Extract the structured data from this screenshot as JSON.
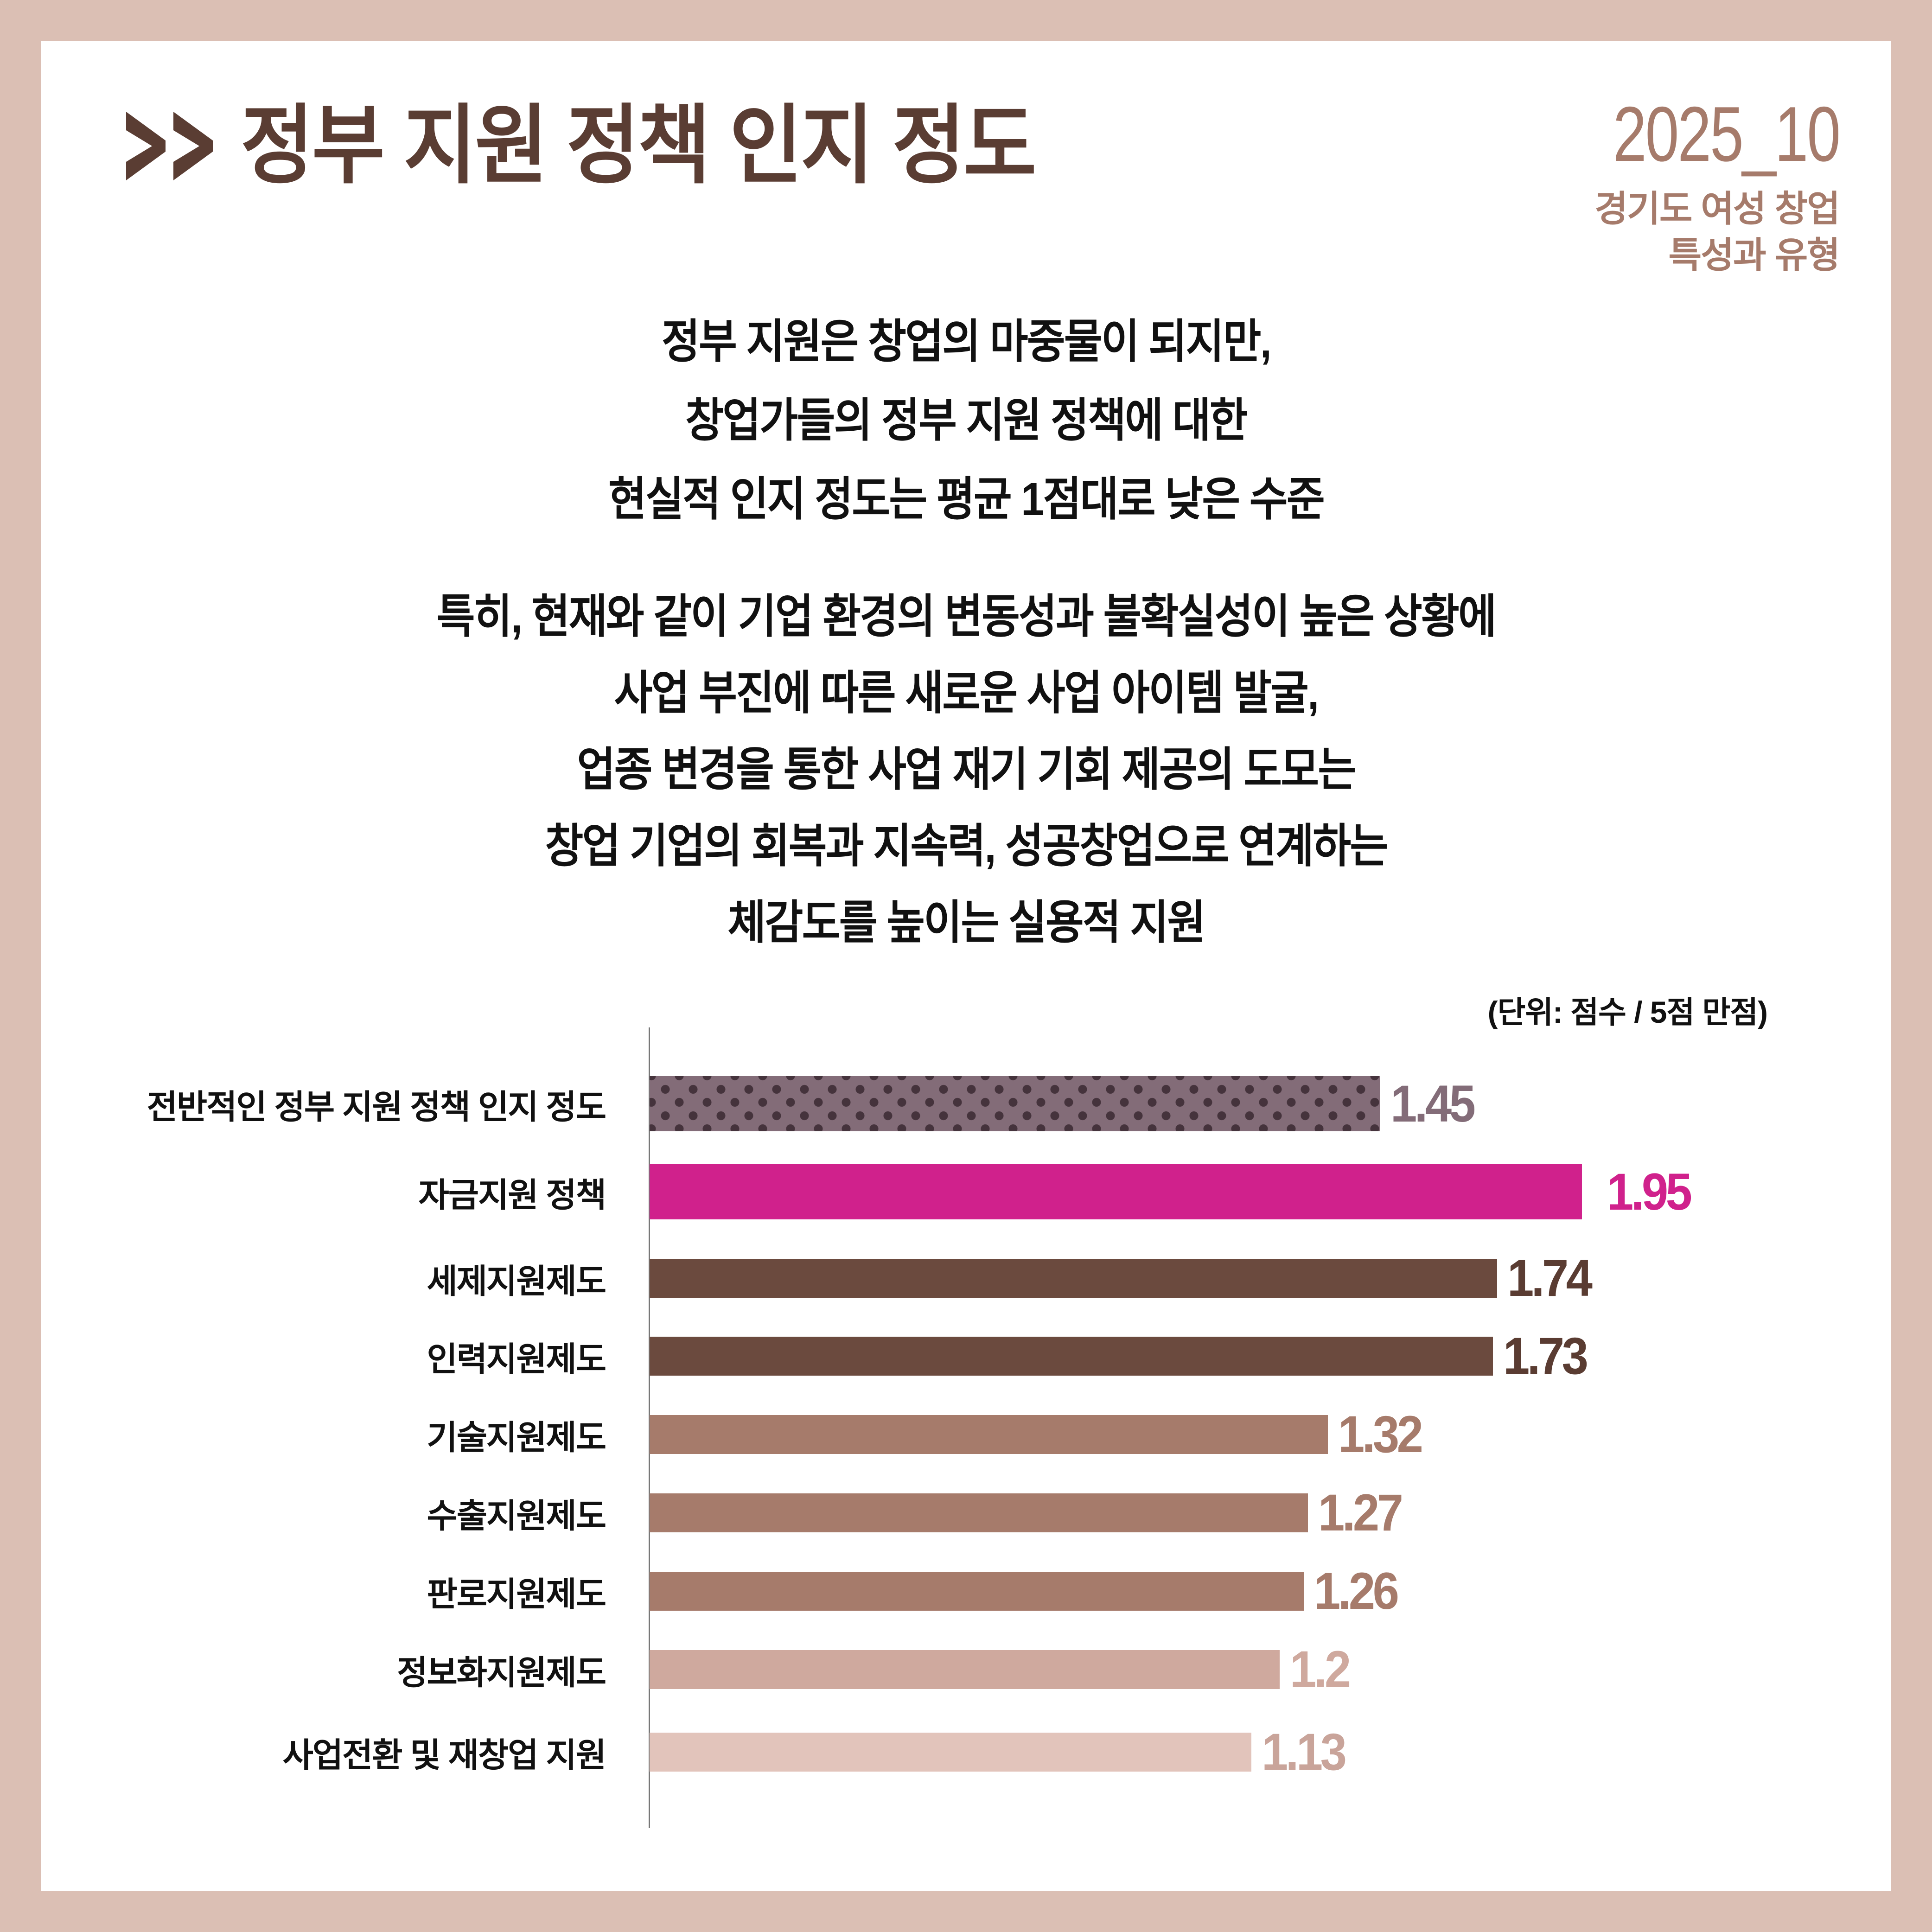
{
  "header": {
    "title_prefix_icon": "double-chevron-right-icon",
    "title": "정부 지원 정책 인지 정도",
    "issue_date": "2025_10",
    "series_title_lines": [
      "경기도 여성 창업",
      "특성과 유형"
    ]
  },
  "summary": {
    "paragraph1": [
      "정부 지원은 창업의 마중물이 되지만,",
      "창업가들의 정부 지원 정책에 대한",
      "현실적 인지 정도는 평균 1점대로 낮은 수준"
    ],
    "paragraph2": [
      "특히, 현재와 같이 기업 환경의 변동성과 불확실성이 높은 상황에",
      "사업 부진에 따른 새로운 사업 아이템 발굴,",
      "업종 변경을 통한 사업 재기 기회 제공의 도모는",
      "창업 기업의 회복과 지속력, 성공창업으로 연계하는",
      "체감도를 높이는 실용적 지원"
    ]
  },
  "colors": {
    "border": "#dbbfb4",
    "title": "#5a3d33",
    "accent_light_brown": "#a67b6b",
    "overall_bar": "#836c78",
    "overall_dots": "#45333c",
    "highlight_magenta": "#d0218c",
    "dark_brown": "#6b4a3e",
    "mid_brown": "#a67b6b",
    "light_pink": "#cfa99e",
    "lightest_pink": "#e2c4bb"
  },
  "chart_data": {
    "type": "bar",
    "orientation": "horizontal",
    "title": "정부 지원 정책 인지 정도",
    "unit_note": "(단위: 점수 / 5점 만점)",
    "xlabel": "",
    "ylabel": "",
    "xlim": [
      0,
      5
    ],
    "grid": false,
    "legend": null,
    "categories": [
      "전반적인 정부 지원 정책 인지 정도",
      "자금지원 정책",
      "세제지원제도",
      "인력지원제도",
      "기술지원제도",
      "수출지원제도",
      "판로지원제도",
      "정보화지원제도",
      "사업전환 및 재창업 지원"
    ],
    "values": [
      1.45,
      1.95,
      1.74,
      1.73,
      1.32,
      1.27,
      1.26,
      1.2,
      1.13
    ],
    "value_labels": [
      "1.45",
      "1.95",
      "1.74",
      "1.73",
      "1.32",
      "1.27",
      "1.26",
      "1.2",
      "1.13"
    ],
    "bar_colors": [
      "#836c78",
      "#d0218c",
      "#6b4a3e",
      "#6b4a3e",
      "#a67b6b",
      "#a67b6b",
      "#a67b6b",
      "#cfa99e",
      "#e2c4bb"
    ],
    "label_colors": [
      "#836c78",
      "#d0218c",
      "#5a3c32",
      "#5a3c32",
      "#a67b6b",
      "#a67b6b",
      "#a67b6b",
      "#cfa99e",
      "#c9a49a"
    ],
    "patterns": [
      "dots",
      "solid",
      "solid",
      "solid",
      "solid",
      "solid",
      "solid",
      "solid",
      "solid"
    ]
  }
}
